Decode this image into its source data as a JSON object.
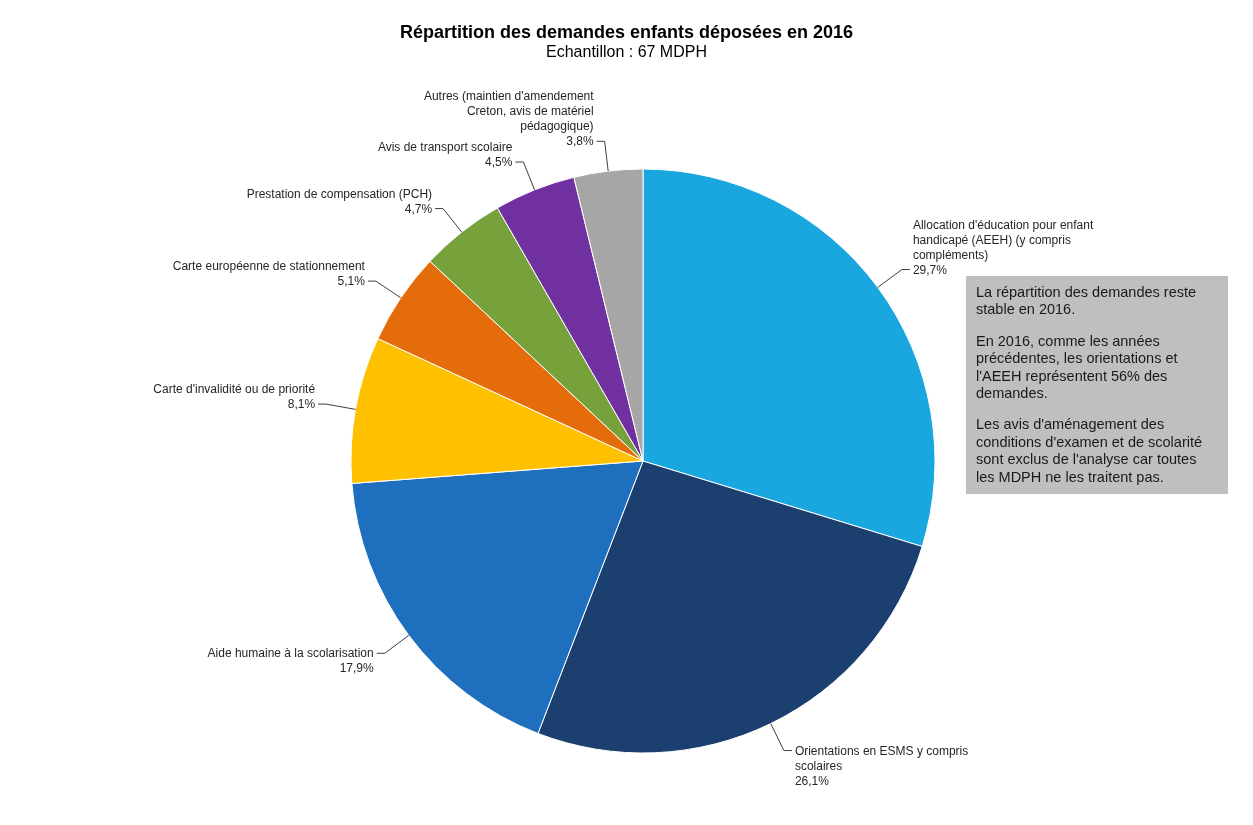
{
  "chart_data": {
    "type": "pie",
    "title": "Répartition des demandes enfants déposées en 2016",
    "subtitle": "Echantillon  : 67 MDPH",
    "categories": [
      "Allocation d'éducation pour enfant handicapé (AEEH) (y compris compléments)",
      "Orientations en ESMS y compris scolaires",
      "Aide humaine à la scolarisation",
      "Carte d'invalidité ou de priorité",
      "Carte européenne de stationnement",
      "Prestation de compensation (PCH)",
      "Avis de transport scolaire",
      "Autres (maintien d'amendement Creton, avis de matériel pédagogique)"
    ],
    "values": [
      29.7,
      26.1,
      17.9,
      8.1,
      5.1,
      4.7,
      4.5,
      3.8
    ],
    "value_labels": [
      "29,7%",
      "26,1%",
      "17,9%",
      "8,1%",
      "5,1%",
      "4,7%",
      "4,5%",
      "3,8%"
    ],
    "colors": [
      "#1aa7e0",
      "#1b3f6e",
      "#1f6fbf",
      "#ffc000",
      "#e46c0a",
      "#77a23b",
      "#7030a0",
      "#a6a6a6"
    ],
    "annotations": [
      "La répartition des demandes reste stable en 2016.",
      "En 2016, comme les années précédentes, les orientations et l'AEEH représentent 56% des demandes.",
      "Les avis d'aménagement des conditions d'examen et de scolarité sont exclus de l'analyse car toutes les MDPH ne les traitent pas."
    ],
    "legend": false
  }
}
